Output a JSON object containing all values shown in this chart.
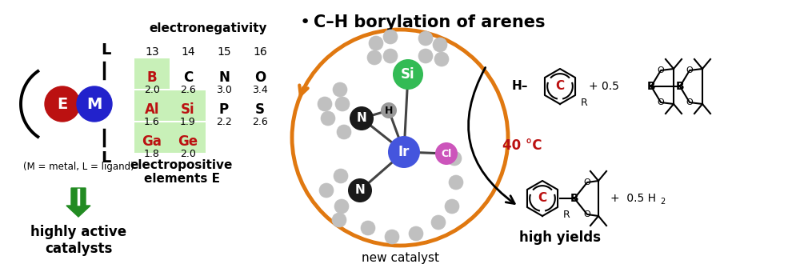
{
  "title": "C–H borylation of arenes",
  "bg_color": "#ffffff",
  "E_color": "#bb1111",
  "M_color": "#2222cc",
  "green_bg": "#c8f0b8",
  "arrow_orange": "#e07810",
  "red_text": "#bb1111",
  "green_arrow": "#228B22",
  "table_header": "electronegativity",
  "groups": [
    "13",
    "14",
    "15",
    "16"
  ],
  "elements_row1": [
    "B",
    "C",
    "N",
    "O"
  ],
  "values_row1": [
    "2.0",
    "2.6",
    "3.0",
    "3.4"
  ],
  "elements_row2": [
    "Al",
    "Si",
    "P",
    "S"
  ],
  "values_row2": [
    "1.6",
    "1.9",
    "2.2",
    "2.6"
  ],
  "elements_row3": [
    "Ga",
    "Ge",
    "",
    ""
  ],
  "values_row3": [
    "1.8",
    "2.0",
    "",
    ""
  ],
  "green_elements": [
    "B",
    "Al",
    "Si",
    "Ga",
    "Ge"
  ],
  "label_EM": "(M = metal, L = ligand)",
  "label_highly": "highly active\ncatalysts",
  "label_electro": "electropositive\nelements E",
  "label_new_catalyst": "new catalyst",
  "label_temp": "40 °C",
  "label_high_yields": "high yields",
  "figsize": [
    10.0,
    3.5
  ],
  "dpi": 100
}
